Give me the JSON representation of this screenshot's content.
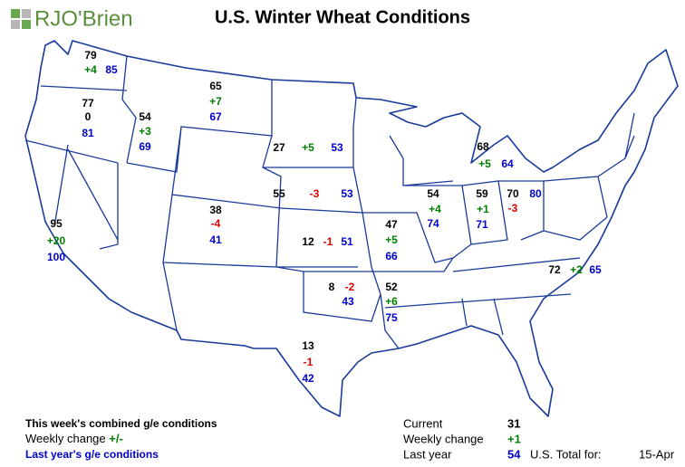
{
  "logo": "RJO'Brien",
  "title": "U.S. Winter Wheat Conditions",
  "colors": {
    "current": "#000000",
    "increase": "#008000",
    "decrease": "#e00000",
    "no_change": "#000000",
    "last_year": "#0000cc"
  },
  "regions": [
    {
      "current": 79,
      "change": "+4",
      "last_year": 85
    },
    {
      "current": 77,
      "change": "0",
      "last_year": 81
    },
    {
      "current": 54,
      "change": "+3",
      "last_year": 69
    },
    {
      "current": 65,
      "change": "+7",
      "last_year": 67
    },
    {
      "current": 27,
      "change": "+5",
      "last_year": 53
    },
    {
      "current": 55,
      "change": "-3",
      "last_year": 53
    },
    {
      "current": 38,
      "change": "-4",
      "last_year": 41
    },
    {
      "current": 95,
      "change": "+20",
      "last_year": 100
    },
    {
      "current": 12,
      "change": "-1",
      "last_year": 51
    },
    {
      "current": 47,
      "change": "+5",
      "last_year": 66
    },
    {
      "current": 8,
      "change": "-2",
      "last_year": 43
    },
    {
      "current": 52,
      "change": "+6",
      "last_year": 75
    },
    {
      "current": 13,
      "change": "-1",
      "last_year": 42
    },
    {
      "current": 54,
      "change": "+4",
      "last_year": 74
    },
    {
      "current": 59,
      "change": "+1",
      "last_year": 71
    },
    {
      "current": 70,
      "change": "-3",
      "last_year": 80
    },
    {
      "current": 68,
      "change": "+5",
      "last_year": 64
    },
    {
      "current": 72,
      "change": "+2",
      "last_year": 65
    }
  ],
  "legend": {
    "current_label": "This week's combined g/e conditions",
    "change_label": "Weekly change ",
    "change_symbol": "+/-",
    "last_year_label": "Last year's g/e conditions"
  },
  "summary": {
    "current_label": "Current",
    "current": 31,
    "change_label": "Weekly change",
    "change": "+1",
    "last_year_label": "Last year",
    "last_year": 54,
    "total_label": "U.S. Total for:",
    "date": "15-Apr"
  }
}
